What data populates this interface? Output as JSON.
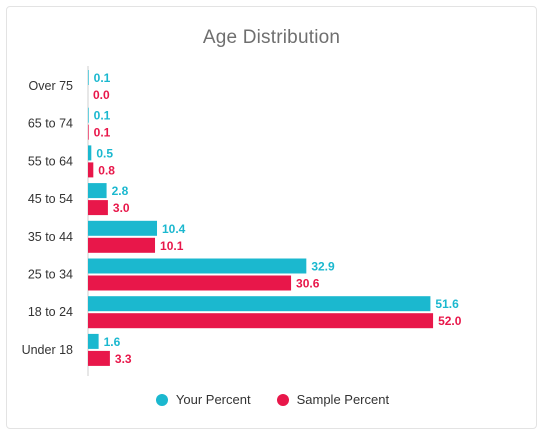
{
  "colors": {
    "your": "#1bb8cf",
    "sample": "#e8174a"
  },
  "chart_data": {
    "type": "bar",
    "orientation": "horizontal",
    "title": "Age Distribution",
    "categories": [
      "Over 75",
      "65 to 74",
      "55 to 64",
      "45 to 54",
      "35 to 44",
      "25 to 34",
      "18 to 24",
      "Under 18"
    ],
    "series": [
      {
        "name": "Your Percent",
        "values": [
          0.1,
          0.1,
          0.5,
          2.8,
          10.4,
          32.9,
          51.6,
          1.6
        ],
        "labels": [
          "0.1",
          "0.1",
          "0.5",
          "2.8",
          "10.4",
          "32.9",
          "51.6",
          "1.6"
        ]
      },
      {
        "name": "Sample Percent",
        "values": [
          0.0,
          0.1,
          0.8,
          3.0,
          10.1,
          30.6,
          52.0,
          3.3
        ],
        "labels": [
          "0.0",
          "0.1",
          "0.8",
          "3.0",
          "10.1",
          "30.6",
          "52.0",
          "3.3"
        ]
      }
    ],
    "xlim": [
      0,
      60
    ],
    "grid": false,
    "legend_position": "bottom-center"
  }
}
